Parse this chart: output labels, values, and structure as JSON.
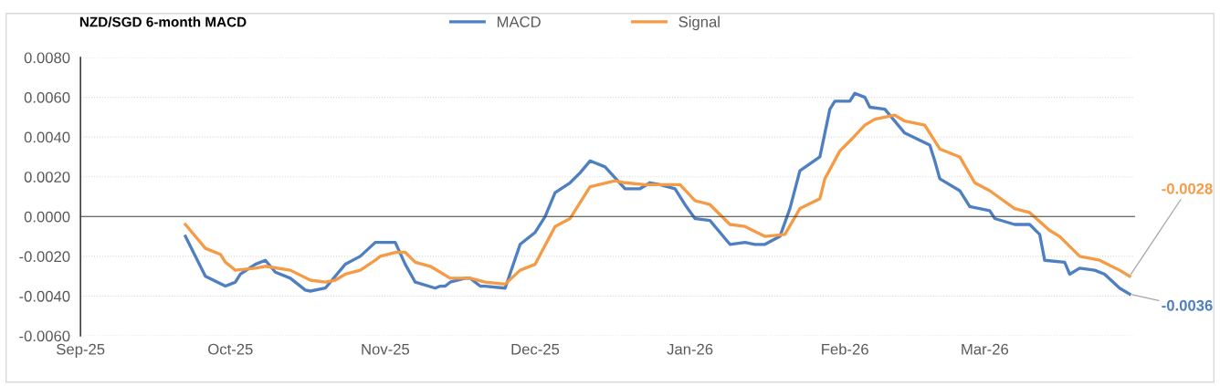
{
  "chart_data": {
    "type": "line",
    "title": "NZD/SGD 6-month MACD",
    "series": [
      {
        "name": "MACD",
        "color": "#4e7fc0",
        "x": [
          "2025-09-22",
          "2025-09-26",
          "2025-09-30",
          "2025-10-02",
          "2025-10-03",
          "2025-10-06",
          "2025-10-08",
          "2025-10-10",
          "2025-10-13",
          "2025-10-16",
          "2025-10-17",
          "2025-10-20",
          "2025-10-24",
          "2025-10-27",
          "2025-10-30",
          "2025-10-31",
          "2025-11-03",
          "2025-11-05",
          "2025-11-07",
          "2025-11-11",
          "2025-11-12",
          "2025-11-13",
          "2025-11-14",
          "2025-11-17",
          "2025-11-18",
          "2025-11-20",
          "2025-11-21",
          "2025-11-25",
          "2025-11-28",
          "2025-12-01",
          "2025-12-03",
          "2025-12-05",
          "2025-12-08",
          "2025-12-10",
          "2025-12-12",
          "2025-12-15",
          "2025-12-19",
          "2025-12-22",
          "2025-12-24",
          "2025-12-26",
          "2025-12-29",
          "2025-12-31",
          "2026-01-02",
          "2026-01-05",
          "2026-01-09",
          "2026-01-12",
          "2026-01-14",
          "2026-01-16",
          "2026-01-19",
          "2026-01-21",
          "2026-01-23",
          "2026-01-27",
          "2026-01-28",
          "2026-01-29",
          "2026-01-30",
          "2026-02-02",
          "2026-02-03",
          "2026-02-05",
          "2026-02-06",
          "2026-02-09",
          "2026-02-13",
          "2026-02-18",
          "2026-02-19",
          "2026-02-20",
          "2026-02-24",
          "2026-02-25",
          "2026-02-26",
          "2026-03-02",
          "2026-03-03",
          "2026-03-07",
          "2026-03-10",
          "2026-03-12",
          "2026-03-13",
          "2026-03-17",
          "2026-03-18",
          "2026-03-20",
          "2026-03-23",
          "2026-03-25",
          "2026-03-28",
          "2026-03-30"
        ],
        "values": [
          -0.001,
          -0.003,
          -0.0035,
          -0.0033,
          -0.0029,
          -0.0024,
          -0.0022,
          -0.0028,
          -0.0031,
          -0.0037,
          -0.00375,
          -0.0036,
          -0.0024,
          -0.002,
          -0.0013,
          -0.0013,
          -0.0013,
          -0.0024,
          -0.0033,
          -0.0036,
          -0.0035,
          -0.0035,
          -0.0033,
          -0.0031,
          -0.0031,
          -0.0035,
          -0.0035,
          -0.0036,
          -0.0014,
          -0.0008,
          0.0,
          0.0012,
          0.0017,
          0.0022,
          0.0028,
          0.0025,
          0.0014,
          0.0014,
          0.0017,
          0.0016,
          0.0014,
          0.0006,
          -0.0001,
          -0.0002,
          -0.0014,
          -0.0013,
          -0.0014,
          -0.0014,
          -0.001,
          0.0004,
          0.0023,
          0.003,
          0.0042,
          0.0054,
          0.0058,
          0.0058,
          0.0062,
          0.006,
          0.0055,
          0.0054,
          0.0042,
          0.0036,
          0.0028,
          0.0019,
          0.0013,
          0.0009,
          0.0005,
          0.0003,
          -0.0001,
          -0.0004,
          -0.0004,
          -0.0009,
          -0.0022,
          -0.0023,
          -0.0029,
          -0.0026,
          -0.0027,
          -0.0029,
          -0.0036,
          -0.0039
        ]
      },
      {
        "name": "Signal",
        "color": "#f59a45",
        "x": [
          "2025-09-22",
          "2025-09-23",
          "2025-09-26",
          "2025-09-29",
          "2025-09-30",
          "2025-10-02",
          "2025-10-06",
          "2025-10-08",
          "2025-10-13",
          "2025-10-17",
          "2025-10-20",
          "2025-10-22",
          "2025-10-24",
          "2025-10-27",
          "2025-10-30",
          "2025-10-31",
          "2025-11-03",
          "2025-11-05",
          "2025-11-07",
          "2025-11-10",
          "2025-11-12",
          "2025-11-14",
          "2025-11-18",
          "2025-11-21",
          "2025-11-25",
          "2025-11-28",
          "2025-12-01",
          "2025-12-05",
          "2025-12-08",
          "2025-12-12",
          "2025-12-17",
          "2025-12-19",
          "2025-12-23",
          "2025-12-26",
          "2025-12-30",
          "2026-01-02",
          "2026-01-05",
          "2026-01-09",
          "2026-01-12",
          "2026-01-16",
          "2026-01-20",
          "2026-01-23",
          "2026-01-27",
          "2026-01-28",
          "2026-01-31",
          "2026-02-02",
          "2026-02-05",
          "2026-02-07",
          "2026-02-11",
          "2026-02-13",
          "2026-02-17",
          "2026-02-20",
          "2026-02-24",
          "2026-02-27",
          "2026-03-02",
          "2026-03-07",
          "2026-03-10",
          "2026-03-14",
          "2026-03-16",
          "2026-03-20",
          "2026-03-24",
          "2026-03-28",
          "2026-03-30"
        ],
        "values": [
          -0.0004,
          -0.0007,
          -0.0016,
          -0.0019,
          -0.0023,
          -0.0027,
          -0.0026,
          -0.0025,
          -0.0027,
          -0.0032,
          -0.0033,
          -0.0032,
          -0.0029,
          -0.0027,
          -0.0022,
          -0.002,
          -0.0018,
          -0.0018,
          -0.0023,
          -0.0025,
          -0.0028,
          -0.0031,
          -0.0031,
          -0.0033,
          -0.0034,
          -0.0027,
          -0.0024,
          -0.0005,
          -0.0001,
          0.0015,
          0.0018,
          0.0017,
          0.0016,
          0.0016,
          0.0016,
          0.0008,
          0.0006,
          -0.0004,
          -0.0005,
          -0.001,
          -0.0009,
          0.0004,
          0.0009,
          0.0019,
          0.0033,
          0.0038,
          0.0046,
          0.0049,
          0.0051,
          0.0048,
          0.0046,
          0.0034,
          0.003,
          0.0017,
          0.0013,
          0.0004,
          0.0002,
          -0.0007,
          -0.001,
          -0.002,
          -0.0022,
          -0.0027,
          -0.003
        ]
      }
    ],
    "xlim": [
      "2025-09-01",
      "2026-03-31"
    ],
    "xticks": [
      {
        "value": "2025-09-01",
        "label": "Sep-25"
      },
      {
        "value": "2025-10-01",
        "label": "Oct-25"
      },
      {
        "value": "2025-11-01",
        "label": "Nov-25"
      },
      {
        "value": "2025-12-01",
        "label": "Dec-25"
      },
      {
        "value": "2026-01-01",
        "label": "Jan-26"
      },
      {
        "value": "2026-02-01",
        "label": "Feb-26"
      },
      {
        "value": "2026-03-01",
        "label": "Mar-26"
      }
    ],
    "ylim": [
      -0.006,
      0.008
    ],
    "yticks": [
      {
        "value": -0.006,
        "label": "-0.0060"
      },
      {
        "value": -0.004,
        "label": "-0.0040"
      },
      {
        "value": -0.002,
        "label": "-0.0020"
      },
      {
        "value": 0,
        "label": "0.0000"
      },
      {
        "value": 0.002,
        "label": "0.0020"
      },
      {
        "value": 0.004,
        "label": "0.0040"
      },
      {
        "value": 0.006,
        "label": "0.0060"
      },
      {
        "value": 0.008,
        "label": "0.0080"
      }
    ],
    "grid": "y",
    "legend": "top",
    "marker": "none",
    "line_style": "solid",
    "annotations": [
      {
        "text": "-0.0028",
        "x": "2026-03-30",
        "y": -0.003
      },
      {
        "text": "-0.0036",
        "x": "2026-03-30",
        "y": -0.0039
      }
    ]
  }
}
